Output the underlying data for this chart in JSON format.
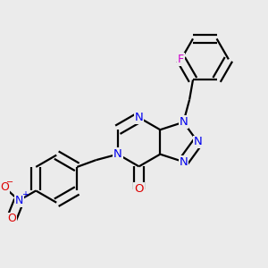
{
  "bg_color": "#ebebeb",
  "bond_color": "#000000",
  "N_color": "#0000ee",
  "O_color": "#dd0000",
  "F_color": "#cc00cc",
  "lw": 1.6,
  "dbo": 0.018,
  "figsize": [
    3.0,
    3.0
  ],
  "dpi": 100,
  "xlim": [
    0.0,
    1.0
  ],
  "ylim": [
    0.05,
    1.05
  ],
  "bl": 0.092
}
